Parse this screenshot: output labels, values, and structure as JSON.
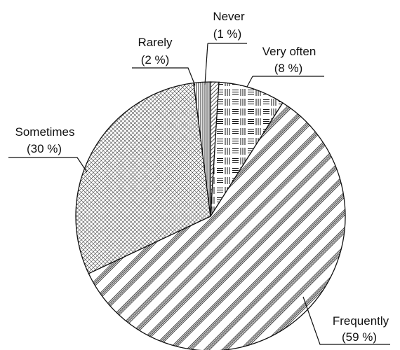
{
  "chart_data": {
    "type": "pie",
    "title": "",
    "slices": [
      {
        "label": "Never",
        "pct_label": "(1 %)",
        "value": 1,
        "pattern": "diagonal-dense"
      },
      {
        "label": "Very often",
        "pct_label": "(8 %)",
        "value": 8,
        "pattern": "lines-blocks"
      },
      {
        "label": "Frequently",
        "pct_label": "(59 %)",
        "value": 59,
        "pattern": "diagonal-stripes"
      },
      {
        "label": "Sometimes",
        "pct_label": "(30 %)",
        "value": 30,
        "pattern": "crosshatch"
      },
      {
        "label": "Rarely",
        "pct_label": "(2 %)",
        "value": 2,
        "pattern": "vertical-lines"
      }
    ],
    "start_angle_deg": 90,
    "direction": "clockwise",
    "colors": {
      "stroke": "#111111",
      "fill": "#ffffff"
    }
  }
}
